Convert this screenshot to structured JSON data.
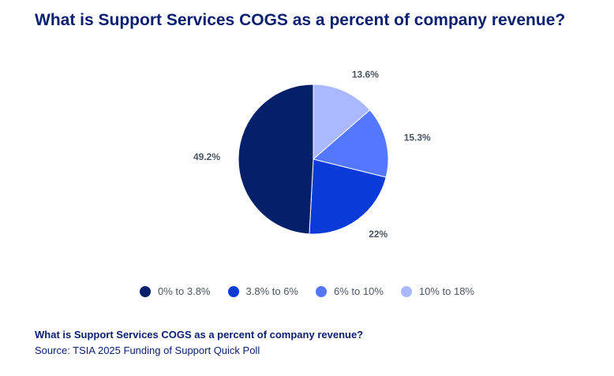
{
  "page": {
    "title": "What is Support Services COGS as a percent of company revenue?",
    "footer_title": "What is Support Services COGS as a percent of company revenue?",
    "footer_source": "Source: TSIA 2025 Funding of Support Quick Poll"
  },
  "chart_data": {
    "type": "pie",
    "title": "What is Support Services COGS as a percent of company revenue?",
    "legend_position": "bottom",
    "start": "12 o'clock",
    "direction": "clockwise",
    "slices": [
      {
        "label": "10% to 18%",
        "value": 13.6,
        "display": "13.6%",
        "color": "#aab9ff"
      },
      {
        "label": "6% to 10%",
        "value": 15.3,
        "display": "15.3%",
        "color": "#5477ff"
      },
      {
        "label": "3.8% to 6%",
        "value": 22,
        "display": "22%",
        "color": "#0a3ad8"
      },
      {
        "label": "0% to 3.8%",
        "value": 49.2,
        "display": "49.2%",
        "color": "#04206a"
      }
    ],
    "legend_order": [
      "0% to 3.8%",
      "3.8% to 6%",
      "6% to 10%",
      "10% to 18%"
    ]
  }
}
